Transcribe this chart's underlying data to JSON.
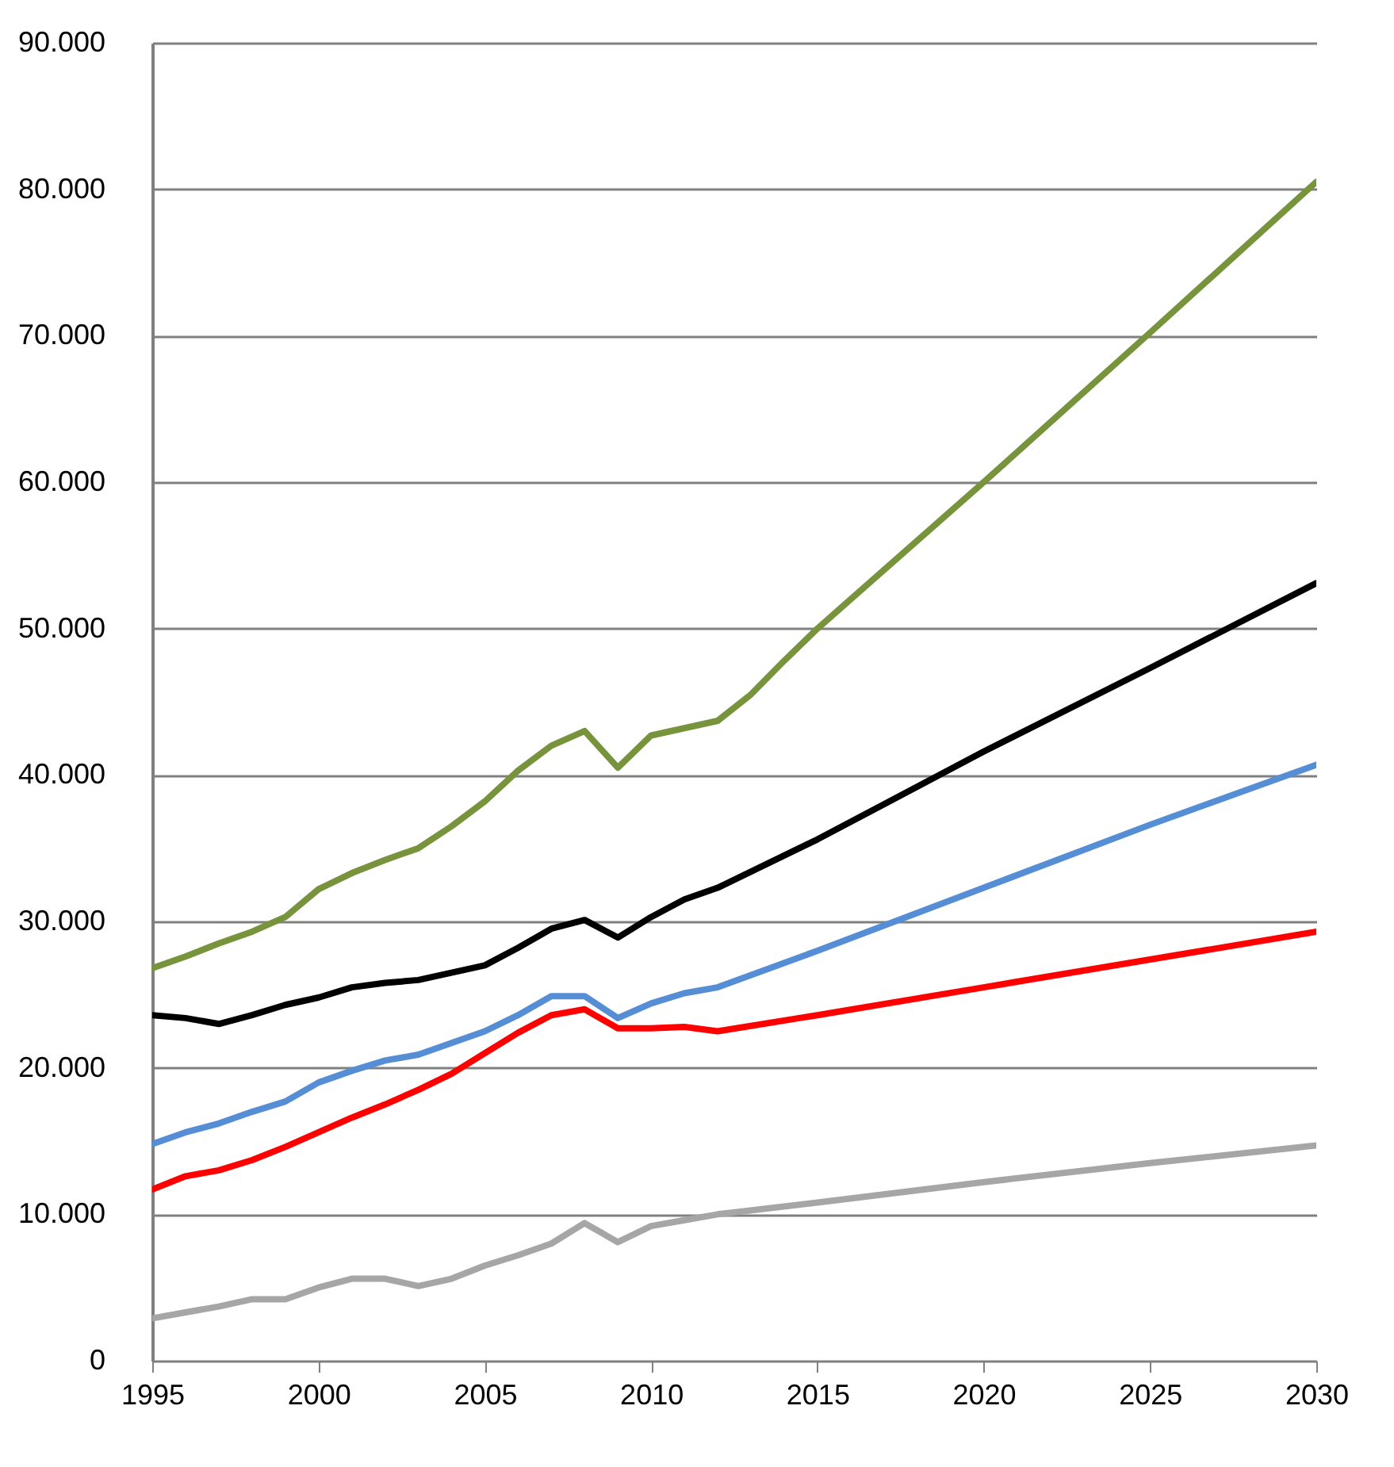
{
  "chart_data": {
    "type": "line",
    "xlim": [
      1995,
      2030
    ],
    "xticks": [
      1995,
      2000,
      2005,
      2010,
      2015,
      2020,
      2025,
      2030
    ],
    "ylim": [
      0,
      90000
    ],
    "yticks": [
      {
        "value": 0,
        "label": "0"
      },
      {
        "value": 10000,
        "label": "10.000"
      },
      {
        "value": 20000,
        "label": "20.000"
      },
      {
        "value": 30000,
        "label": "30.000"
      },
      {
        "value": 40000,
        "label": "40.000"
      },
      {
        "value": 50000,
        "label": "50.000"
      },
      {
        "value": 60000,
        "label": "60.000"
      },
      {
        "value": 70000,
        "label": "70.000"
      },
      {
        "value": 80000,
        "label": "80.000"
      },
      {
        "value": 90000,
        "label": "90.000"
      }
    ],
    "grid": "y",
    "legend": false,
    "marker": "none",
    "line_style": "solid",
    "series": [
      {
        "color": "#77933c",
        "x": [
          1995,
          1996,
          1997,
          1998,
          1999,
          2000,
          2001,
          2002,
          2003,
          2004,
          2005,
          2006,
          2007,
          2008,
          2009,
          2010,
          2011,
          2012,
          2013,
          2014,
          2015,
          2020,
          2025,
          2030
        ],
        "values": [
          26800,
          27600,
          28500,
          29300,
          30300,
          32200,
          33300,
          34200,
          35000,
          36500,
          38200,
          40300,
          42000,
          43000,
          40500,
          42700,
          43200,
          43700,
          45500,
          47800,
          50000,
          60000,
          70200,
          80500
        ]
      },
      {
        "color": "#000000",
        "x": [
          1995,
          1996,
          1997,
          1998,
          1999,
          2000,
          2001,
          2002,
          2003,
          2004,
          2005,
          2006,
          2007,
          2008,
          2009,
          2010,
          2011,
          2012,
          2015,
          2020,
          2025,
          2030
        ],
        "values": [
          23600,
          23400,
          23000,
          23600,
          24300,
          24800,
          25500,
          25800,
          26000,
          26500,
          27000,
          28200,
          29500,
          30100,
          28900,
          30300,
          31500,
          32300,
          35600,
          41600,
          47300,
          53100
        ]
      },
      {
        "color": "#558ed5",
        "x": [
          1995,
          1996,
          1997,
          1998,
          1999,
          2000,
          2001,
          2002,
          2003,
          2004,
          2005,
          2006,
          2007,
          2008,
          2009,
          2010,
          2011,
          2012,
          2015,
          2020,
          2025,
          2030
        ],
        "values": [
          14800,
          15600,
          16200,
          17000,
          17700,
          19000,
          19800,
          20500,
          20900,
          21700,
          22500,
          23600,
          24900,
          24900,
          23400,
          24400,
          25100,
          25500,
          28000,
          32300,
          36600,
          40700
        ]
      },
      {
        "color": "#ff0000",
        "x": [
          1995,
          1996,
          1997,
          1998,
          1999,
          2000,
          2001,
          2002,
          2003,
          2004,
          2005,
          2006,
          2007,
          2008,
          2009,
          2010,
          2011,
          2012,
          2015,
          2020,
          2025,
          2030
        ],
        "values": [
          11700,
          12600,
          13000,
          13700,
          14600,
          15600,
          16600,
          17500,
          18500,
          19600,
          21000,
          22400,
          23600,
          24000,
          22700,
          22700,
          22800,
          22500,
          23600,
          25500,
          27400,
          29300
        ]
      },
      {
        "color": "#a6a6a6",
        "x": [
          1995,
          1996,
          1997,
          1998,
          1999,
          2000,
          2001,
          2002,
          2003,
          2004,
          2005,
          2006,
          2007,
          2008,
          2009,
          2010,
          2011,
          2012,
          2015,
          2020,
          2025,
          2030
        ],
        "values": [
          2900,
          3300,
          3700,
          4200,
          4200,
          5000,
          5600,
          5600,
          5100,
          5600,
          6500,
          7200,
          8000,
          9400,
          8100,
          9200,
          9600,
          10000,
          10800,
          12200,
          13500,
          14700
        ]
      }
    ]
  }
}
